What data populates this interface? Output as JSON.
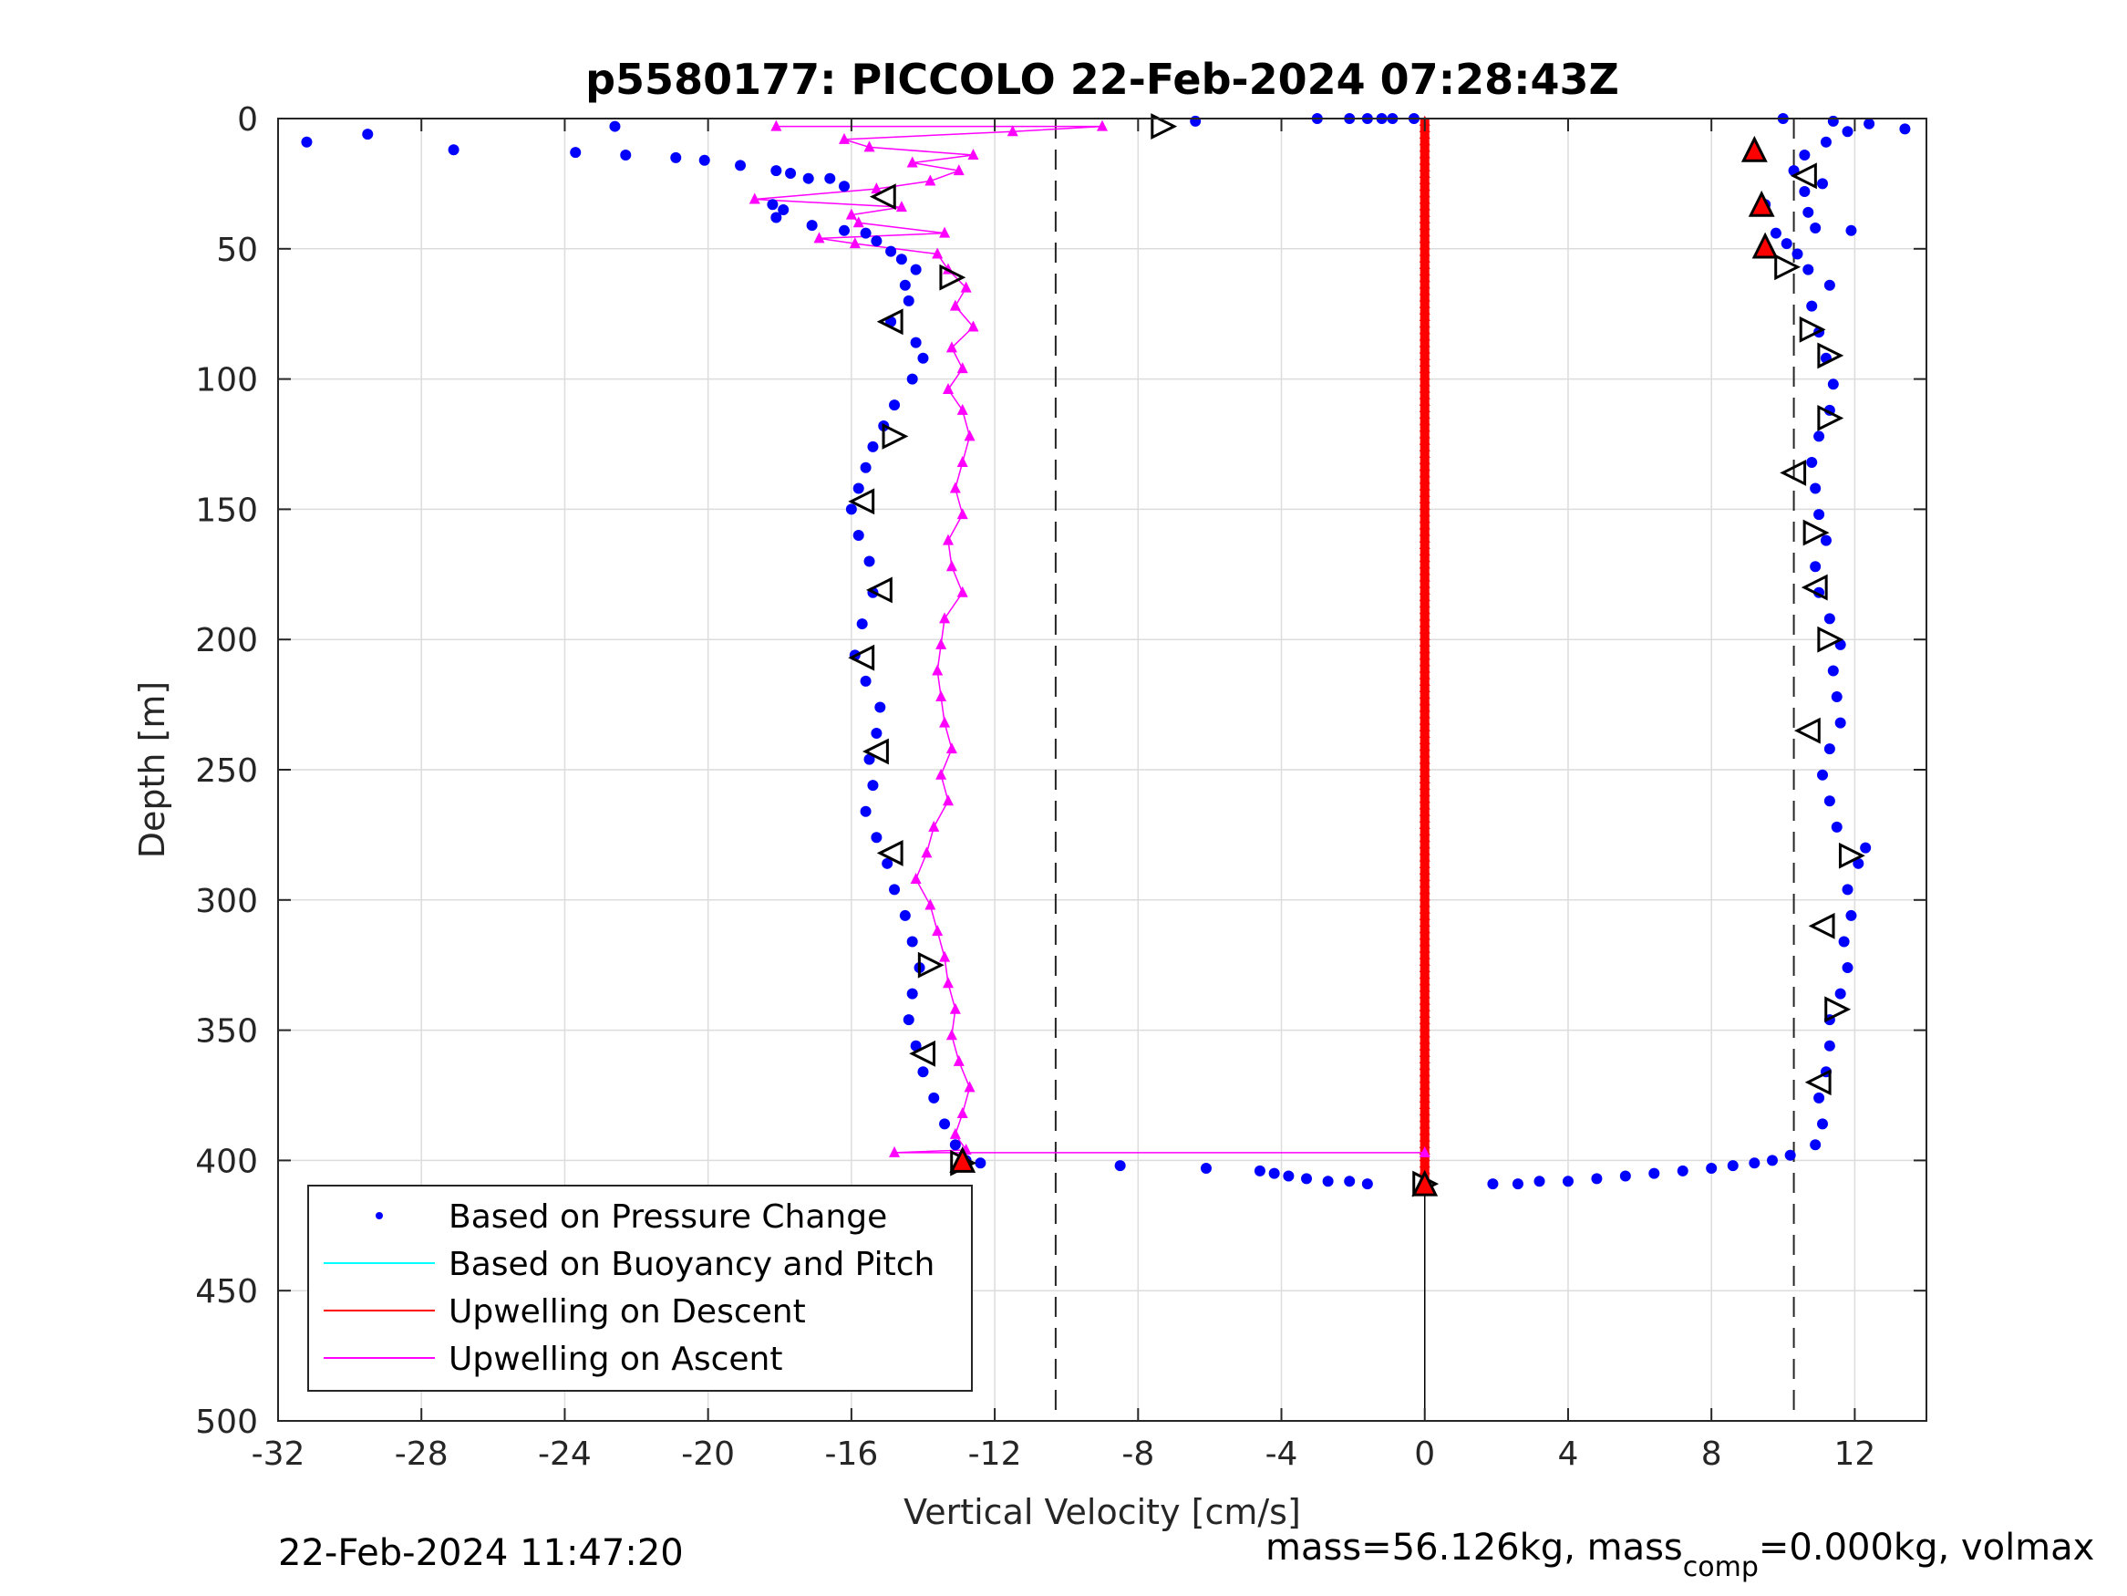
{
  "chart_data": {
    "type": "scatter",
    "title": "p5580177: PICCOLO 22-Feb-2024 07:28:43Z",
    "xlabel": "Vertical Velocity [cm/s]",
    "ylabel": "Depth [m]",
    "xlim": [
      -32,
      14
    ],
    "ylim": [
      0,
      500
    ],
    "y_reversed": true,
    "grid": true,
    "x_ticks": [
      -32,
      -28,
      -24,
      -20,
      -16,
      -12,
      -8,
      -4,
      0,
      4,
      8,
      12
    ],
    "y_ticks": [
      0,
      50,
      100,
      150,
      200,
      250,
      300,
      350,
      400,
      450,
      500
    ],
    "reference_lines": {
      "dashed_x": [
        -10.3,
        10.3
      ],
      "solid_x": [
        0
      ],
      "solid_x_depth_from": 405
    },
    "legend": {
      "placement": "bottom-left",
      "entries": [
        {
          "label": "Based on Pressure Change",
          "color": "#0000ff",
          "style": "dot"
        },
        {
          "label": "Based on Buoyancy and Pitch",
          "color": "#00ffff",
          "style": "line"
        },
        {
          "label": "Upwelling on Descent",
          "color": "#ff0000",
          "style": "line"
        },
        {
          "label": "Upwelling on Ascent",
          "color": "#ff00ff",
          "style": "line"
        }
      ]
    },
    "series": [
      {
        "name": "Based on Pressure Change",
        "color": "#0000ff",
        "marker": "dot",
        "descent_points": [
          [
            -31.2,
            9
          ],
          [
            -29.5,
            6
          ],
          [
            -27.1,
            12
          ],
          [
            -23.7,
            13
          ],
          [
            -22.6,
            3
          ],
          [
            -22.3,
            14
          ],
          [
            -20.9,
            15
          ],
          [
            -20.1,
            16
          ],
          [
            -19.1,
            18
          ],
          [
            -18.1,
            20
          ],
          [
            -17.7,
            21
          ],
          [
            -17.2,
            23
          ],
          [
            -16.6,
            23
          ],
          [
            -16.2,
            26
          ],
          [
            -18.2,
            33
          ],
          [
            -17.9,
            35
          ],
          [
            -18.1,
            38
          ],
          [
            -17.1,
            41
          ],
          [
            -16.2,
            43
          ],
          [
            -15.6,
            44
          ],
          [
            -15.3,
            47
          ],
          [
            -14.9,
            51
          ],
          [
            -14.6,
            54
          ],
          [
            -14.2,
            58
          ],
          [
            -14.5,
            64
          ],
          [
            -14.4,
            70
          ],
          [
            -14.9,
            78
          ],
          [
            -14.2,
            86
          ],
          [
            -14.0,
            92
          ],
          [
            -14.3,
            100
          ],
          [
            -14.8,
            110
          ],
          [
            -15.1,
            118
          ],
          [
            -15.4,
            126
          ],
          [
            -15.6,
            134
          ],
          [
            -15.8,
            142
          ],
          [
            -16.0,
            150
          ],
          [
            -15.8,
            160
          ],
          [
            -15.5,
            170
          ],
          [
            -15.4,
            182
          ],
          [
            -15.7,
            194
          ],
          [
            -15.9,
            206
          ],
          [
            -15.6,
            216
          ],
          [
            -15.2,
            226
          ],
          [
            -15.3,
            236
          ],
          [
            -15.5,
            246
          ],
          [
            -15.4,
            256
          ],
          [
            -15.6,
            266
          ],
          [
            -15.3,
            276
          ],
          [
            -15.0,
            286
          ],
          [
            -14.8,
            296
          ],
          [
            -14.5,
            306
          ],
          [
            -14.3,
            316
          ],
          [
            -14.1,
            326
          ],
          [
            -14.3,
            336
          ],
          [
            -14.4,
            346
          ],
          [
            -14.2,
            356
          ],
          [
            -14.0,
            366
          ],
          [
            -13.7,
            376
          ],
          [
            -13.4,
            386
          ],
          [
            -13.1,
            394
          ],
          [
            -12.8,
            400
          ],
          [
            -12.4,
            401
          ],
          [
            -8.5,
            402
          ],
          [
            -6.1,
            403
          ],
          [
            -4.6,
            404
          ],
          [
            -4.2,
            405
          ],
          [
            -3.8,
            406
          ],
          [
            -3.3,
            407
          ],
          [
            -2.7,
            408
          ],
          [
            -2.1,
            408
          ],
          [
            -1.6,
            409
          ]
        ],
        "ascent_points": [
          [
            1.9,
            409
          ],
          [
            2.6,
            409
          ],
          [
            3.2,
            408
          ],
          [
            4.0,
            408
          ],
          [
            4.8,
            407
          ],
          [
            5.6,
            406
          ],
          [
            6.4,
            405
          ],
          [
            7.2,
            404
          ],
          [
            8.0,
            403
          ],
          [
            8.6,
            402
          ],
          [
            9.2,
            401
          ],
          [
            9.7,
            400
          ],
          [
            10.2,
            398
          ],
          [
            10.9,
            394
          ],
          [
            11.1,
            386
          ],
          [
            11.0,
            376
          ],
          [
            11.2,
            366
          ],
          [
            11.3,
            356
          ],
          [
            11.3,
            346
          ],
          [
            11.6,
            336
          ],
          [
            11.8,
            326
          ],
          [
            11.7,
            316
          ],
          [
            11.9,
            306
          ],
          [
            11.8,
            296
          ],
          [
            12.1,
            286
          ],
          [
            12.3,
            280
          ],
          [
            11.5,
            272
          ],
          [
            11.3,
            262
          ],
          [
            11.1,
            252
          ],
          [
            11.3,
            242
          ],
          [
            11.6,
            232
          ],
          [
            11.5,
            222
          ],
          [
            11.4,
            212
          ],
          [
            11.6,
            202
          ],
          [
            11.3,
            192
          ],
          [
            11.0,
            182
          ],
          [
            10.9,
            172
          ],
          [
            11.2,
            162
          ],
          [
            11.0,
            152
          ],
          [
            10.9,
            142
          ],
          [
            10.8,
            132
          ],
          [
            11.0,
            122
          ],
          [
            11.3,
            112
          ],
          [
            11.4,
            102
          ],
          [
            11.2,
            92
          ],
          [
            11.0,
            82
          ],
          [
            10.8,
            72
          ],
          [
            11.3,
            64
          ],
          [
            10.7,
            58
          ],
          [
            10.4,
            52
          ],
          [
            10.1,
            48
          ],
          [
            9.8,
            44
          ],
          [
            10.9,
            42
          ],
          [
            11.9,
            43
          ],
          [
            10.7,
            36
          ],
          [
            9.5,
            33
          ],
          [
            10.6,
            28
          ],
          [
            11.1,
            25
          ],
          [
            10.3,
            20
          ],
          [
            10.6,
            14
          ],
          [
            11.2,
            9
          ],
          [
            11.8,
            5
          ],
          [
            12.4,
            2
          ],
          [
            13.4,
            4
          ],
          [
            11.4,
            1
          ],
          [
            10.0,
            0
          ]
        ],
        "surface_points": [
          [
            -6.4,
            1
          ],
          [
            -3.0,
            0
          ],
          [
            -2.1,
            0
          ],
          [
            -1.6,
            0
          ],
          [
            -1.2,
            0
          ],
          [
            -0.9,
            0
          ],
          [
            -0.3,
            0
          ]
        ]
      },
      {
        "name": "Upwelling on Ascent",
        "color": "#ff00ff",
        "marker": "triangle",
        "points": [
          [
            -18.1,
            3
          ],
          [
            -9.0,
            3
          ],
          [
            -11.5,
            5
          ],
          [
            -16.2,
            8
          ],
          [
            -15.5,
            11
          ],
          [
            -12.6,
            14
          ],
          [
            -14.3,
            17
          ],
          [
            -13.0,
            20
          ],
          [
            -13.8,
            24
          ],
          [
            -15.3,
            27
          ],
          [
            -18.7,
            31
          ],
          [
            -14.6,
            34
          ],
          [
            -16.0,
            37
          ],
          [
            -15.8,
            40
          ],
          [
            -13.4,
            44
          ],
          [
            -16.9,
            46
          ],
          [
            -15.9,
            48
          ],
          [
            -13.6,
            52
          ],
          [
            -13.3,
            58
          ],
          [
            -12.8,
            65
          ],
          [
            -13.1,
            72
          ],
          [
            -12.6,
            80
          ],
          [
            -13.2,
            88
          ],
          [
            -12.9,
            96
          ],
          [
            -13.3,
            104
          ],
          [
            -12.9,
            112
          ],
          [
            -12.7,
            122
          ],
          [
            -12.9,
            132
          ],
          [
            -13.1,
            142
          ],
          [
            -12.9,
            152
          ],
          [
            -13.3,
            162
          ],
          [
            -13.2,
            172
          ],
          [
            -12.9,
            182
          ],
          [
            -13.4,
            192
          ],
          [
            -13.5,
            202
          ],
          [
            -13.6,
            212
          ],
          [
            -13.5,
            222
          ],
          [
            -13.4,
            232
          ],
          [
            -13.2,
            242
          ],
          [
            -13.5,
            252
          ],
          [
            -13.3,
            262
          ],
          [
            -13.7,
            272
          ],
          [
            -13.9,
            282
          ],
          [
            -14.2,
            292
          ],
          [
            -13.8,
            302
          ],
          [
            -13.6,
            312
          ],
          [
            -13.4,
            322
          ],
          [
            -13.3,
            332
          ],
          [
            -13.1,
            342
          ],
          [
            -13.2,
            352
          ],
          [
            -13.0,
            362
          ],
          [
            -12.7,
            372
          ],
          [
            -12.9,
            382
          ],
          [
            -13.1,
            390
          ],
          [
            -12.8,
            396
          ],
          [
            -14.8,
            397
          ],
          [
            0.0,
            397
          ]
        ]
      },
      {
        "name": "Upwelling on Descent",
        "color": "#ff0000",
        "marker": "triangle",
        "points": [
          [
            0.0,
            0
          ],
          [
            0.0,
            100
          ],
          [
            0.0,
            200
          ],
          [
            0.0,
            300
          ],
          [
            0.0,
            400
          ],
          [
            0.0,
            408
          ]
        ]
      }
    ],
    "triangle_markers": {
      "left": [
        [
          -15.1,
          30
        ],
        [
          -14.9,
          78
        ],
        [
          -15.7,
          147
        ],
        [
          -15.2,
          181
        ],
        [
          -15.7,
          207
        ],
        [
          -15.3,
          243
        ],
        [
          -14.9,
          282
        ],
        [
          -14.0,
          359
        ],
        [
          10.6,
          22
        ],
        [
          10.3,
          136
        ],
        [
          11.1,
          310
        ],
        [
          11.0,
          370
        ],
        [
          10.7,
          235
        ],
        [
          10.9,
          180
        ]
      ],
      "right": [
        [
          -7.3,
          3
        ],
        [
          -13.2,
          61
        ],
        [
          -14.8,
          122
        ],
        [
          -13.8,
          325
        ],
        [
          -12.9,
          401
        ],
        [
          10.1,
          57
        ],
        [
          10.8,
          81
        ],
        [
          11.3,
          91
        ],
        [
          11.3,
          115
        ],
        [
          10.9,
          159
        ],
        [
          11.3,
          200
        ],
        [
          11.9,
          283
        ],
        [
          11.5,
          342
        ],
        [
          0.0,
          409
        ]
      ],
      "up_red": [
        [
          9.2,
          12
        ],
        [
          9.4,
          33
        ],
        [
          9.5,
          49
        ],
        [
          -12.9,
          400
        ],
        [
          0.0,
          409
        ]
      ]
    }
  },
  "footer": {
    "timestamp": "22-Feb-2024 11:47:20",
    "mass_text": "mass=56.126kg, mass",
    "mass_sub": "comp",
    "mass_tail": "=0.000kg, volmax"
  }
}
